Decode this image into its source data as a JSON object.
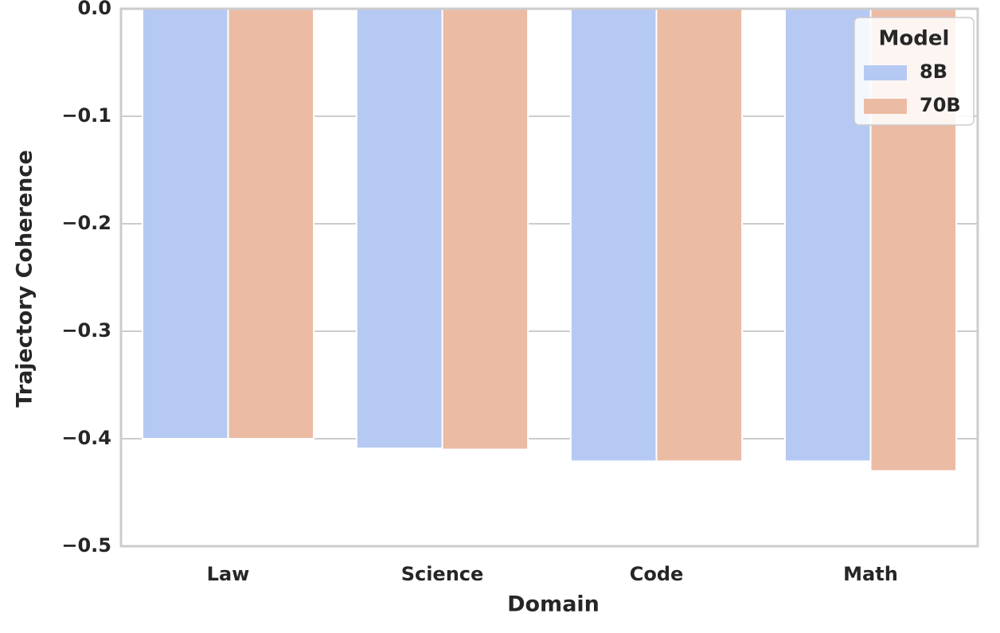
{
  "chart_data": {
    "type": "bar",
    "x_label": "Domain",
    "y_label": "Trajectory Coherence",
    "categories": [
      "Law",
      "Science",
      "Code",
      "Math"
    ],
    "series": [
      {
        "name": "8B",
        "color": "#b5c9f3",
        "values": [
          -0.4,
          -0.409,
          -0.421,
          -0.421
        ]
      },
      {
        "name": "70B",
        "color": "#ecbba4",
        "values": [
          -0.4,
          -0.41,
          -0.421,
          -0.43
        ]
      }
    ],
    "ylim": [
      -0.5,
      0
    ],
    "yticks": [
      {
        "value": -0.5,
        "label": "−0.5"
      },
      {
        "value": -0.4,
        "label": "−0.4"
      },
      {
        "value": -0.3,
        "label": "−0.3"
      },
      {
        "value": -0.2,
        "label": "−0.2"
      },
      {
        "value": -0.1,
        "label": "−0.1"
      },
      {
        "value": 0,
        "label": "0.0"
      }
    ],
    "grid": true,
    "legend": {
      "title": "Model",
      "position": "upper right"
    }
  }
}
